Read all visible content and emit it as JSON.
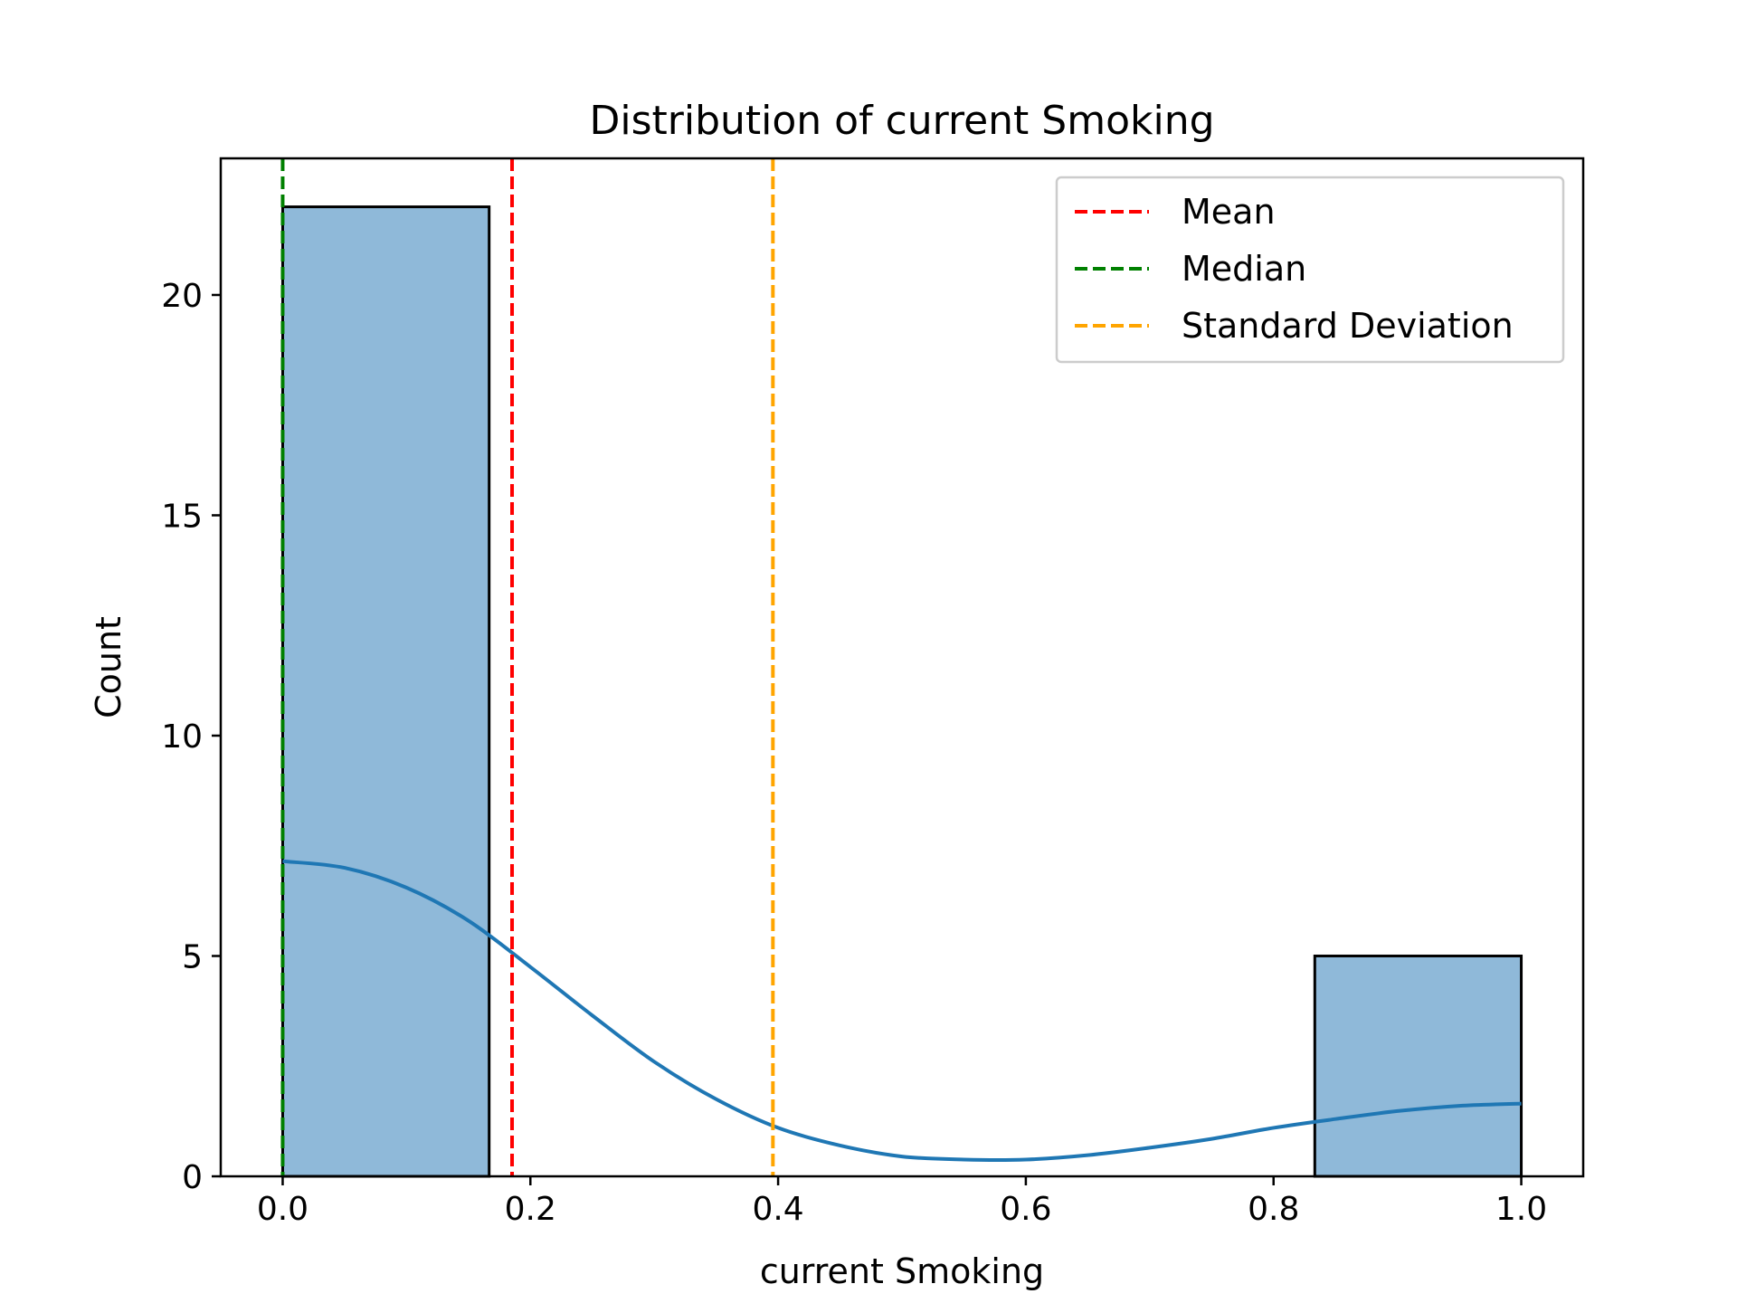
{
  "chart_data": {
    "type": "bar",
    "title": "Distribution of current Smoking",
    "xlabel": "current Smoking",
    "ylabel": "Count",
    "xlim": [
      -0.05,
      1.05
    ],
    "ylim": [
      0,
      23.1
    ],
    "x_ticks": [
      0.0,
      0.2,
      0.4,
      0.6,
      0.8,
      1.0
    ],
    "x_tick_labels": [
      "0.0",
      "0.2",
      "0.4",
      "0.6",
      "0.8",
      "1.0"
    ],
    "y_ticks": [
      0,
      5,
      10,
      15,
      20
    ],
    "y_tick_labels": [
      "0",
      "5",
      "10",
      "15",
      "20"
    ],
    "grid": false,
    "legend_position": "top-right",
    "histogram": {
      "bins": [
        {
          "x0": 0.0,
          "x1": 0.1667,
          "count": 22
        },
        {
          "x0": 0.8333,
          "x1": 1.0,
          "count": 5
        }
      ],
      "fill_color": "#8fb9d9",
      "edge_color": "#000000"
    },
    "kde": {
      "color": "#1f77b4",
      "x": [
        0.0,
        0.05,
        0.1,
        0.15,
        0.2,
        0.25,
        0.3,
        0.35,
        0.4,
        0.45,
        0.5,
        0.55,
        0.6,
        0.65,
        0.7,
        0.75,
        0.8,
        0.85,
        0.9,
        0.95,
        1.0
      ],
      "y": [
        7.15,
        7.0,
        6.55,
        5.8,
        4.75,
        3.65,
        2.6,
        1.75,
        1.1,
        0.7,
        0.45,
        0.38,
        0.38,
        0.48,
        0.65,
        0.85,
        1.1,
        1.3,
        1.48,
        1.6,
        1.65
      ]
    },
    "series": [
      {
        "name": "Mean",
        "x": 0.1852,
        "color": "#ff0000",
        "style": "dashed"
      },
      {
        "name": "Median",
        "x": 0.0,
        "color": "#008000",
        "style": "dashed"
      },
      {
        "name": "Standard Deviation",
        "x": 0.3958,
        "color": "#ffa500",
        "style": "dashed"
      }
    ]
  }
}
